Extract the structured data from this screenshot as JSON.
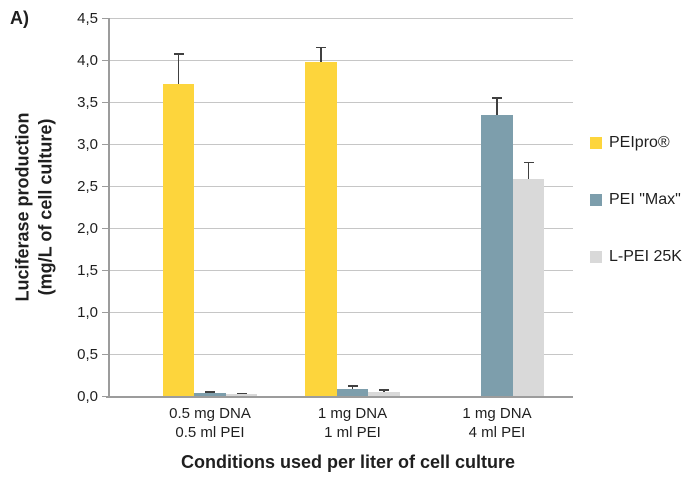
{
  "panel_label": "A)",
  "chart_data": {
    "type": "bar",
    "title": "",
    "xlabel": "Conditions used per liter of cell culture",
    "ylabel": "Luciferase production\n(mg/L of cell culture)",
    "ylim": [
      0,
      4.5
    ],
    "grid": true,
    "legend_position": "right",
    "decimal_separator": ",",
    "yticks": [
      {
        "label": "0,0",
        "value": 0.0
      },
      {
        "label": "0,5",
        "value": 0.5
      },
      {
        "label": "1,0",
        "value": 1.0
      },
      {
        "label": "1,5",
        "value": 1.5
      },
      {
        "label": "2,0",
        "value": 2.0
      },
      {
        "label": "2,5",
        "value": 2.5
      },
      {
        "label": "3,0",
        "value": 3.0
      },
      {
        "label": "3,5",
        "value": 3.5
      },
      {
        "label": "4,0",
        "value": 4.0
      },
      {
        "label": "4,5",
        "value": 4.5
      }
    ],
    "categories": [
      {
        "label": "0.5 mg DNA\n0.5 ml PEI"
      },
      {
        "label": "1 mg DNA\n1 ml PEI"
      },
      {
        "label": "1 mg DNA\n4 ml PEI"
      }
    ],
    "series": [
      {
        "name": "PEIpro®",
        "color": "#FDD53C",
        "values": [
          3.72,
          3.98,
          null
        ],
        "errors": [
          0.35,
          0.17,
          null
        ]
      },
      {
        "name": "PEI \"Max\"",
        "color": "#7D9EAC",
        "values": [
          0.03,
          0.08,
          3.35
        ],
        "errors": [
          0.02,
          0.04,
          0.2
        ]
      },
      {
        "name": "L-PEI 25K",
        "color": "#D9D9D9",
        "values": [
          0.02,
          0.05,
          2.58
        ],
        "errors": [
          0.01,
          0.02,
          0.2
        ]
      }
    ],
    "colors": {
      "gridline": "#C6C6C6",
      "axis": "#9C9C9C",
      "error_bar": "#404040",
      "text": "#1F1F1F",
      "background": "#FFFFFF"
    }
  }
}
